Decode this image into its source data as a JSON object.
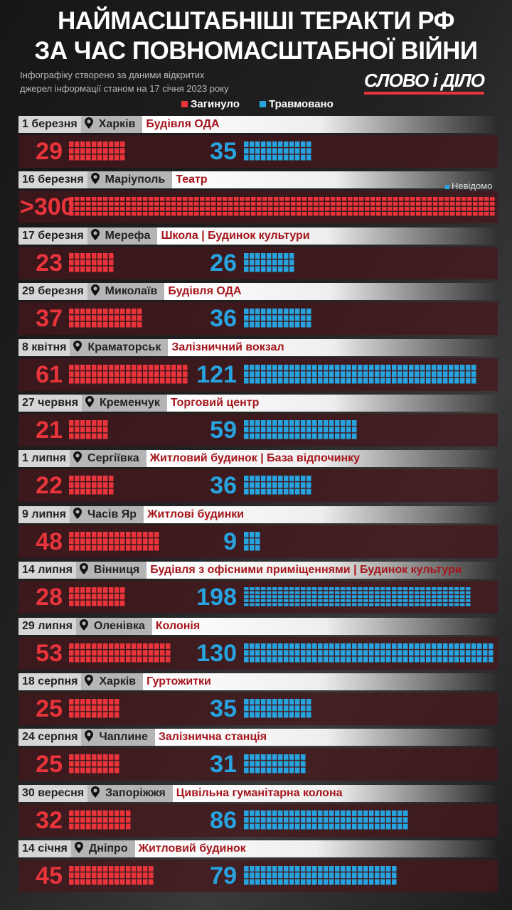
{
  "header": {
    "title_line1": "НАЙМАСШТАБНІШІ ТЕРАКТИ РФ",
    "title_line2": "ЗА ЧАС ПОВНОМАСШТАБНОЇ ВІЙНИ",
    "subtitle_line1": "Інфографіку створено за даними відкритих",
    "subtitle_line2": "джерел інформації станом на 17 січня 2023 року",
    "logo": "СЛОВО і ДІЛО"
  },
  "legend": {
    "killed": "Загинуло",
    "injured": "Травмовано",
    "killed_color": "#e8343a",
    "injured_color": "#27a4e0"
  },
  "events": [
    {
      "date": "1 березня",
      "city": "Харків",
      "target": "Будівля ОДА",
      "killed": 29,
      "injured": 35
    },
    {
      "date": "16 березня",
      "city": "Маріуполь",
      "target": "Театр",
      "killed": 300,
      "killed_label": ">300",
      "injured": null,
      "injured_note": "Невідомо"
    },
    {
      "date": "17 березня",
      "city": "Мерефа",
      "target": "Школа | Будинок культури",
      "killed": 23,
      "injured": 26
    },
    {
      "date": "29 березня",
      "city": "Миколаїв",
      "target": "Будівля ОДА",
      "killed": 37,
      "injured": 36
    },
    {
      "date": "8 квітня",
      "city": "Краматорськ",
      "target": "Залізничний вокзал",
      "killed": 61,
      "injured": 121
    },
    {
      "date": "27 червня",
      "city": "Кременчук",
      "target": "Торговий центр",
      "killed": 21,
      "injured": 59
    },
    {
      "date": "1 липня",
      "city": "Сергіївка",
      "target": "Житловий будинок | База відпочинку",
      "killed": 22,
      "injured": 36
    },
    {
      "date": "9 липня",
      "city": "Часів Яр",
      "target": "Житлові будинки",
      "killed": 48,
      "injured": 9
    },
    {
      "date": "14 липня",
      "city": "Вінниця",
      "target": "Будівля з офісними приміщеннями | Будинок культури",
      "killed": 28,
      "injured": 198
    },
    {
      "date": "29 липня",
      "city": "Оленівка",
      "target": "Колонія",
      "killed": 53,
      "injured": 130
    },
    {
      "date": "18 серпня",
      "city": "Харків",
      "target": "Гуртожитки",
      "killed": 25,
      "injured": 35
    },
    {
      "date": "24 серпня",
      "city": "Чаплине",
      "target": "Залізнична станція",
      "killed": 25,
      "injured": 31
    },
    {
      "date": "30 вересня",
      "city": "Запоріжжя",
      "target": "Цивільна гуманітарна колона",
      "killed": 32,
      "injured": 86
    },
    {
      "date": "14 січня",
      "city": "Дніпро",
      "target": "Житловий будинок",
      "killed": 45,
      "injured": 79
    }
  ]
}
